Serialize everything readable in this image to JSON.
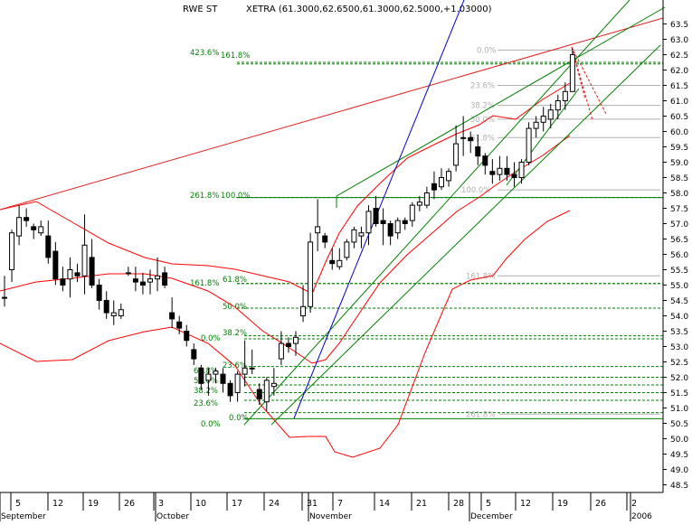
{
  "header": {
    "symbol": "RWE ST",
    "quote": "XETRA (61.3000,62.6500,61.3000,62.5000,+1.03000)"
  },
  "colors": {
    "candle": "#000000",
    "bollinger": "#ff0000",
    "trend_red": "#e02020",
    "channel_green": "#008000",
    "fib_green": "#008000",
    "fib_grey": "#b0b0b0",
    "blue_line": "#0000cc",
    "axis_text": "#000000"
  },
  "chart_data": {
    "type": "candlestick",
    "title": "RWE ST",
    "subtitle": "XETRA (61.3000,62.6500,61.3000,62.5000,+1.03000)",
    "ylim": [
      48.25,
      63.75
    ],
    "y_ticks": [
      "63.5",
      "63.0",
      "62.5",
      "62.0",
      "61.5",
      "61.0",
      "60.5",
      "60.0",
      "59.5",
      "59.0",
      "58.5",
      "58.0",
      "57.5",
      "57.0",
      "56.5",
      "56.0",
      "55.5",
      "55.0",
      "54.5",
      "54.0",
      "53.5",
      "53.0",
      "52.5",
      "52.0",
      "51.5",
      "51.0",
      "50.5",
      "50.0",
      "49.5",
      "49.0",
      "48.5"
    ],
    "x_ticks": [
      "5",
      "12",
      "19",
      "26",
      "3",
      "10",
      "17",
      "24",
      "31",
      "7",
      "14",
      "21",
      "28",
      "5",
      "12",
      "19",
      "26",
      "2"
    ],
    "months": [
      "September",
      "October",
      "November",
      "December",
      "2006"
    ],
    "grid": false,
    "candles": [
      [
        54.6,
        55.3,
        54.3,
        54.6
      ],
      [
        55.5,
        56.8,
        55.1,
        56.7
      ],
      [
        56.6,
        57.6,
        56.3,
        57.2
      ],
      [
        57.2,
        57.5,
        56.9,
        57.1
      ],
      [
        56.9,
        57.0,
        56.5,
        56.8
      ],
      [
        56.7,
        57.1,
        56.6,
        56.9
      ],
      [
        56.6,
        57.1,
        55.7,
        55.9
      ],
      [
        56.1,
        56.4,
        55.0,
        55.2
      ],
      [
        55.2,
        55.6,
        54.8,
        55.0
      ],
      [
        55.2,
        55.9,
        54.6,
        55.5
      ],
      [
        55.4,
        55.7,
        55.1,
        55.3
      ],
      [
        55.3,
        57.3,
        54.7,
        56.3
      ],
      [
        55.9,
        56.5,
        54.9,
        55.0
      ],
      [
        55.0,
        55.2,
        54.2,
        54.5
      ],
      [
        54.5,
        54.8,
        53.9,
        54.1
      ],
      [
        54.0,
        54.5,
        53.7,
        54.1
      ],
      [
        54.0,
        54.4,
        53.9,
        54.2
      ],
      [
        55.4,
        55.6,
        55.3,
        55.4
      ],
      [
        55.2,
        55.6,
        54.8,
        55.1
      ],
      [
        55.1,
        55.4,
        54.7,
        55.0
      ],
      [
        55.1,
        55.5,
        54.7,
        55.2
      ],
      [
        55.2,
        55.9,
        54.8,
        55.3
      ],
      [
        55.4,
        55.6,
        54.9,
        55.0
      ],
      [
        54.1,
        54.6,
        53.6,
        53.9
      ],
      [
        53.8,
        54.0,
        53.4,
        53.6
      ],
      [
        53.5,
        53.7,
        53.0,
        53.2
      ],
      [
        52.9,
        53.1,
        52.4,
        52.6
      ],
      [
        52.3,
        52.4,
        51.6,
        51.8
      ],
      [
        51.9,
        52.3,
        51.4,
        52.1
      ],
      [
        52.1,
        52.3,
        51.8,
        52.2
      ],
      [
        52.1,
        52.3,
        51.5,
        51.8
      ],
      [
        51.8,
        51.9,
        51.2,
        51.4
      ],
      [
        51.5,
        52.2,
        51.2,
        52.1
      ],
      [
        52.1,
        53.2,
        51.7,
        52.3
      ],
      [
        52.3,
        52.9,
        52.1,
        52.3
      ],
      [
        51.6,
        51.8,
        51.1,
        51.3
      ],
      [
        51.2,
        52.0,
        50.9,
        51.9
      ],
      [
        51.7,
        52.3,
        51.4,
        51.8
      ],
      [
        52.6,
        53.5,
        52.4,
        53.1
      ],
      [
        53.1,
        53.3,
        52.8,
        53.0
      ],
      [
        53.1,
        53.5,
        52.7,
        53.3
      ],
      [
        54.0,
        55.0,
        53.8,
        54.3
      ],
      [
        54.3,
        56.7,
        54.1,
        56.4
      ],
      [
        56.7,
        57.8,
        56.1,
        56.9
      ],
      [
        56.6,
        56.7,
        56.2,
        56.4
      ],
      [
        55.8,
        56.2,
        55.5,
        55.7
      ],
      [
        55.6,
        56.2,
        55.5,
        55.8
      ],
      [
        55.9,
        56.5,
        55.8,
        56.4
      ],
      [
        56.4,
        56.9,
        56.2,
        56.8
      ],
      [
        56.6,
        56.9,
        56.2,
        56.7
      ],
      [
        56.7,
        57.6,
        56.3,
        57.4
      ],
      [
        57.5,
        57.9,
        56.9,
        57.0
      ],
      [
        57.1,
        57.5,
        56.3,
        57.0
      ],
      [
        57.0,
        57.1,
        56.3,
        56.6
      ],
      [
        56.7,
        57.2,
        56.5,
        57.1
      ],
      [
        57.1,
        57.2,
        56.8,
        57.0
      ],
      [
        57.1,
        57.7,
        56.9,
        57.6
      ],
      [
        57.6,
        57.9,
        57.4,
        57.7
      ],
      [
        57.6,
        58.2,
        57.5,
        58.0
      ],
      [
        58.3,
        58.7,
        57.8,
        58.1
      ],
      [
        58.2,
        58.8,
        58.1,
        58.5
      ],
      [
        58.4,
        58.8,
        58.2,
        58.7
      ],
      [
        58.9,
        60.2,
        58.7,
        59.6
      ],
      [
        59.8,
        60.5,
        59.2,
        59.8
      ],
      [
        59.8,
        60.0,
        59.3,
        59.7
      ],
      [
        59.5,
        59.9,
        58.9,
        59.2
      ],
      [
        59.2,
        59.3,
        58.6,
        58.9
      ],
      [
        58.7,
        59.1,
        58.3,
        58.6
      ],
      [
        58.6,
        59.2,
        58.4,
        58.8
      ],
      [
        58.8,
        59.2,
        58.4,
        58.6
      ],
      [
        58.6,
        59.0,
        58.2,
        58.5
      ],
      [
        58.5,
        59.1,
        58.3,
        59.0
      ],
      [
        59.0,
        60.3,
        58.9,
        60.1
      ],
      [
        60.1,
        60.5,
        59.8,
        60.3
      ],
      [
        60.3,
        60.8,
        60.0,
        60.5
      ],
      [
        60.4,
        60.9,
        60.1,
        60.7
      ],
      [
        60.7,
        61.2,
        60.4,
        61.0
      ],
      [
        61.0,
        61.6,
        60.7,
        61.3
      ],
      [
        61.3,
        62.7,
        61.3,
        62.5
      ]
    ],
    "fibonacci_left": [
      {
        "label": "0.0%",
        "value": 50.65
      },
      {
        "label": "0.0%",
        "value": 50.85
      },
      {
        "label": "23.6%",
        "value": 51.25
      },
      {
        "label": "38.2%",
        "value": 51.5
      },
      {
        "label": "50.0%",
        "value": 51.75
      },
      {
        "label": "61.8%",
        "value": 52.0
      },
      {
        "label": "23.6%",
        "value": 52.35
      },
      {
        "label": "38.2%",
        "value": 53.35
      },
      {
        "label": "0.0%",
        "value": 53.25
      },
      {
        "label": "50.0%",
        "value": 54.25
      },
      {
        "label": "61.8%",
        "value": 55.05
      },
      {
        "label": "161.8%",
        "value": 55.05
      },
      {
        "label": "261.8%",
        "value": 57.85
      },
      {
        "label": "100.0%",
        "value": 57.85
      },
      {
        "label": "423.6%",
        "value": 62.25
      },
      {
        "label": "161.8%",
        "value": 62.2
      }
    ],
    "fibonacci_right": [
      {
        "label": "0.0%",
        "value": 62.65
      },
      {
        "label": "23.6%",
        "value": 61.5
      },
      {
        "label": "38.2%",
        "value": 60.85
      },
      {
        "label": "50.0%",
        "value": 60.4
      },
      {
        "label": "61.8%",
        "value": 59.8
      },
      {
        "label": "100.0%",
        "value": 58.1
      },
      {
        "label": "161.8%",
        "value": 55.3
      },
      {
        "label": "261.8%",
        "value": 50.8
      }
    ],
    "axis_labels": {
      "xlabel": "",
      "ylabel": ""
    }
  }
}
